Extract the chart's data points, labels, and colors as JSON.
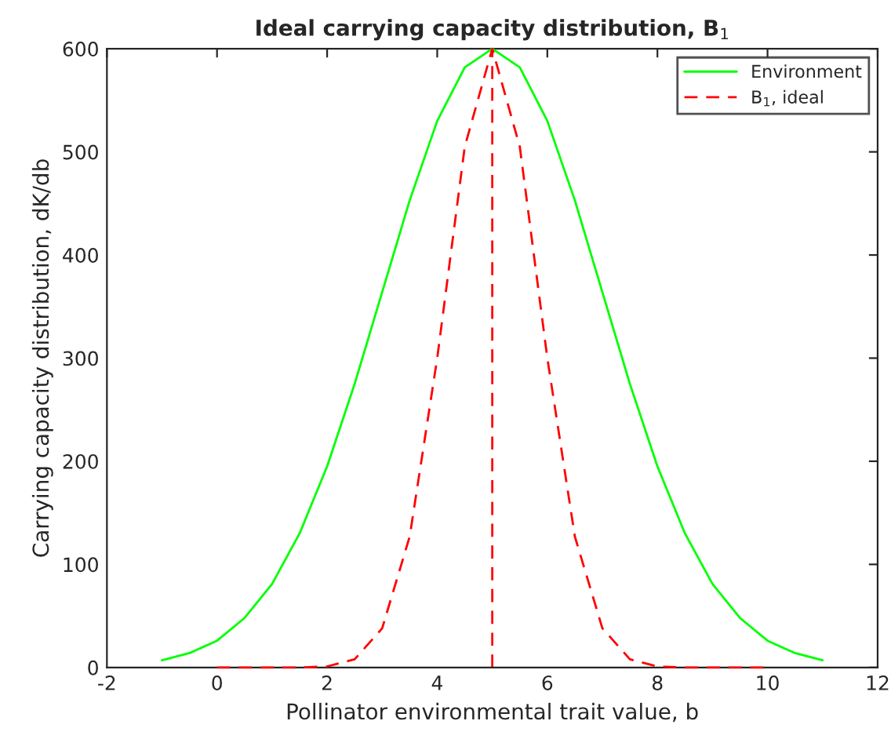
{
  "chart_data": {
    "type": "line",
    "title": "Ideal carrying capacity distribution, B$_{1}$",
    "xlabel": "Pollinator environmental trait value, b",
    "ylabel": "Carrying capacity distribution, dK/db",
    "series": [
      {
        "name": "Environment",
        "color": "#00ff00",
        "line_style": "solid",
        "x": [
          -1,
          -0.5,
          0,
          0.5,
          1,
          1.5,
          2,
          2.5,
          3,
          3.5,
          4,
          4.5,
          5,
          5.5,
          6,
          6.5,
          7,
          7.5,
          8,
          8.5,
          9,
          9.5,
          10,
          10.5,
          11
        ],
        "values": [
          7,
          14,
          26,
          48,
          81,
          130,
          195,
          275,
          364,
          453,
          530,
          582,
          600,
          582,
          530,
          453,
          364,
          275,
          195,
          130,
          81,
          48,
          26,
          14,
          7
        ]
      },
      {
        "name": "B$_{1}$, ideal",
        "color": "#ff0000",
        "line_style": "dashed",
        "x": [
          0,
          0.5,
          1,
          1.5,
          2,
          2.5,
          3,
          3.5,
          4,
          4.5,
          5,
          5.5,
          6,
          6.5,
          7,
          7.5,
          8,
          8.5,
          9,
          9.5,
          10
        ],
        "values": [
          0,
          0,
          0,
          0,
          1,
          8,
          38,
          127,
          300,
          505,
          600,
          505,
          300,
          127,
          38,
          8,
          1,
          0,
          0,
          0,
          0
        ]
      }
    ],
    "ref_lines": [
      {
        "axis": "x",
        "value": 5,
        "color": "#ff0000",
        "line_style": "dashed"
      }
    ],
    "xlim": [
      -2,
      12
    ],
    "xticks": [
      -2,
      0,
      2,
      4,
      6,
      8,
      10,
      12
    ],
    "ylim": [
      0,
      600
    ],
    "yticks": [
      0,
      100,
      200,
      300,
      400,
      500,
      600
    ],
    "grid": false,
    "legend": "top right"
  }
}
